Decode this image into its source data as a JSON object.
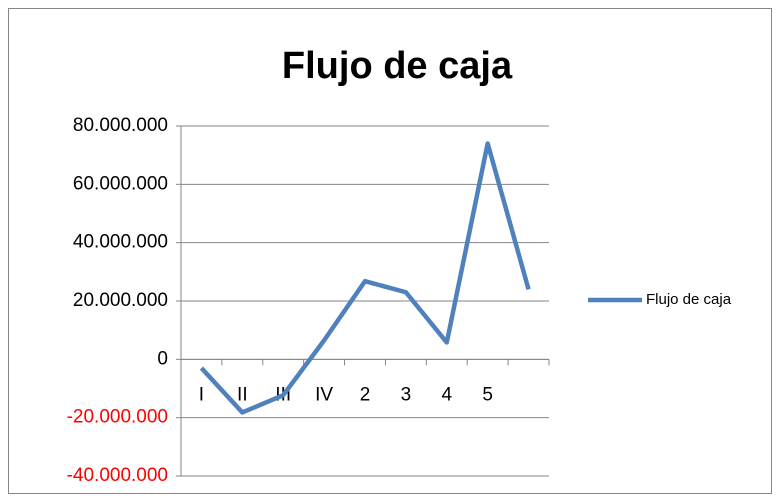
{
  "chart_data": {
    "type": "line",
    "title": "Flujo de caja",
    "categories": [
      "I",
      "II",
      "III",
      "IV",
      "2",
      "3",
      "4",
      "5",
      null
    ],
    "series": [
      {
        "name": "Flujo de caja",
        "color": "#4f81bd",
        "values": [
          -3000000,
          -18200000,
          -12300000,
          6500000,
          26800000,
          23000000,
          5800000,
          74000000,
          24000000
        ]
      }
    ],
    "ylim": [
      -40000000,
      80000000
    ],
    "yticks": [
      {
        "value": -40000000,
        "label": "-40.000.000"
      },
      {
        "value": -20000000,
        "label": "-20.000.000"
      },
      0,
      {
        "value": 20000000,
        "label": "20.000.000"
      },
      {
        "value": 40000000,
        "label": "40.000.000"
      },
      {
        "value": 60000000,
        "label": "60.000.000"
      },
      {
        "value": 80000000,
        "label": "80.000.000"
      }
    ],
    "negative_tick_color": "#ff0000",
    "grid": true,
    "legend": "right"
  }
}
